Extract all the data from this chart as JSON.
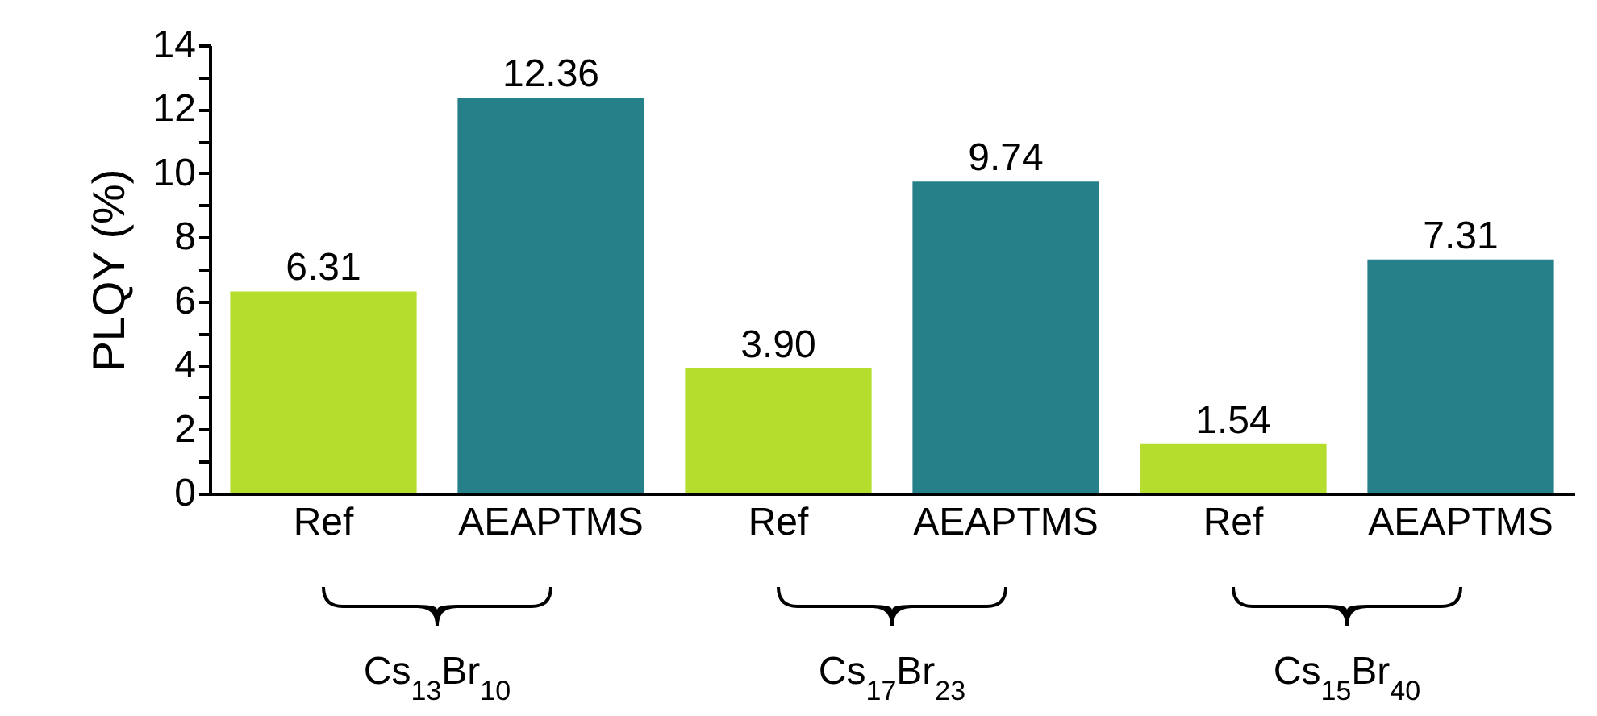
{
  "chart_data": {
    "type": "bar",
    "ylabel": "PLQY (%)",
    "categories": [
      "Ref",
      "AEAPTMS",
      "Ref",
      "AEAPTMS",
      "Ref",
      "AEAPTMS"
    ],
    "values": [
      6.31,
      12.36,
      3.9,
      9.74,
      1.54,
      7.31
    ],
    "value_labels": [
      "6.31",
      "12.36",
      "3.90",
      "9.74",
      "1.54",
      "7.31"
    ],
    "colors": [
      "#b5dd2e",
      "#26808a",
      "#b5dd2e",
      "#26808a",
      "#b5dd2e",
      "#26808a"
    ],
    "ylim": [
      0,
      14
    ],
    "yticks": [
      0,
      {
        "value": 1,
        "label": null
      },
      2,
      {
        "value": 3,
        "label": null
      },
      4,
      {
        "value": 5,
        "label": null
      },
      6,
      {
        "value": 7,
        "label": null
      },
      8,
      {
        "value": 9,
        "label": null
      },
      10,
      {
        "value": 11,
        "label": null
      },
      12,
      {
        "value": 13,
        "label": null
      },
      14
    ],
    "grid": false,
    "annotations": [
      "Cs$_{13}$Br$_{10}$",
      "Cs$_{17}$Br$_{23}$",
      "Cs$_{15}$Br$_{40}$"
    ]
  }
}
